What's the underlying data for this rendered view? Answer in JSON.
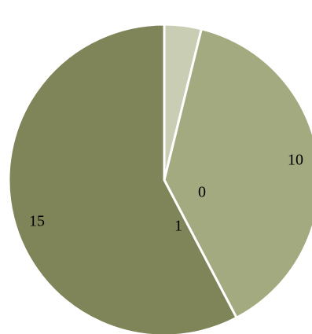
{
  "chart_data": {
    "type": "pie",
    "categories": [
      "",
      "",
      "",
      ""
    ],
    "values": [
      0,
      1,
      10,
      15
    ],
    "data_labels": [
      "0",
      "1",
      "10",
      "15"
    ],
    "colors": [
      "#d2d5c0",
      "#c9cdb4",
      "#a3aa80",
      "#7f8559"
    ],
    "start_angle": "12 o'clock",
    "direction": "clockwise",
    "title": "",
    "legend": "none"
  }
}
